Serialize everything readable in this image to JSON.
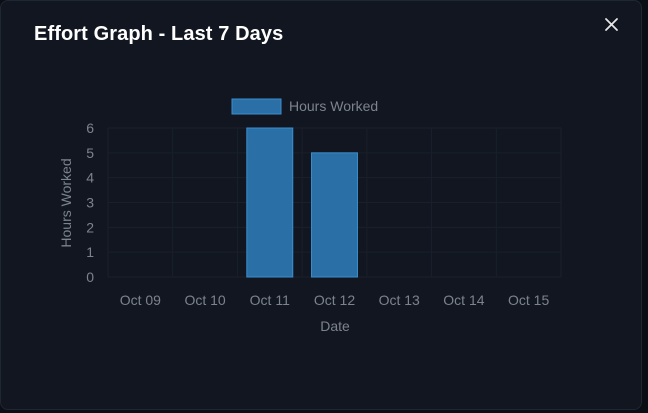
{
  "modal": {
    "title": "Effort Graph - Last 7 Days",
    "close_icon": "close-icon"
  },
  "chart_data": {
    "type": "bar",
    "categories": [
      "Oct 09",
      "Oct 10",
      "Oct 11",
      "Oct 12",
      "Oct 13",
      "Oct 14",
      "Oct 15"
    ],
    "series": [
      {
        "name": "Hours Worked",
        "values": [
          0,
          0,
          6,
          5,
          0,
          0,
          0
        ]
      }
    ],
    "title": "",
    "xlabel": "Date",
    "ylabel": "Hours Worked",
    "ylim": [
      0,
      6
    ],
    "yticks": [
      0,
      1,
      2,
      3,
      4,
      5,
      6
    ],
    "grid": true,
    "legend": "top-center",
    "colors": {
      "bar_fill": "#2a6fa6",
      "bar_border": "#3a8fd0",
      "grid": "#1a202b",
      "text": "#7d838d"
    }
  }
}
